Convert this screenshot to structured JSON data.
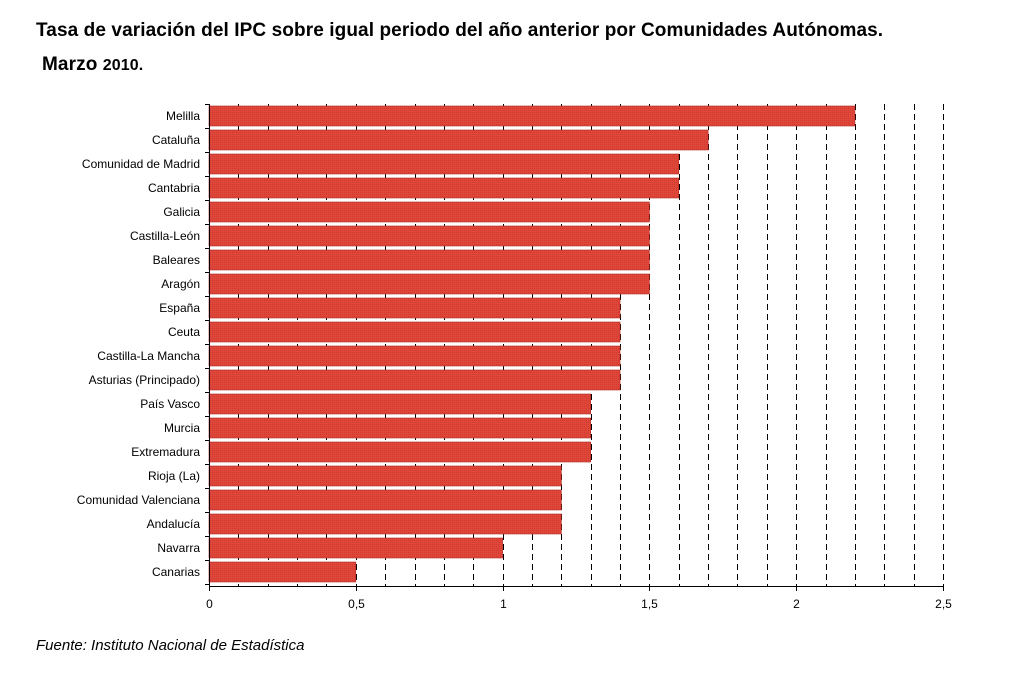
{
  "title": {
    "line1": "Tasa de variación del IPC sobre igual periodo del año anterior por Comunidades Autónomas.",
    "line2_word": "Marzo",
    "line2_year": "2010."
  },
  "source": "Fuente: Instituto Nacional de Estadística",
  "colors": {
    "bar": "#e0473b",
    "bar_edge": "#b52a20",
    "grid": "#000000"
  },
  "chart_data": {
    "type": "bar",
    "orientation": "horizontal",
    "categories": [
      "Melilla",
      "Cataluña",
      "Comunidad de Madrid",
      "Cantabria",
      "Galicia",
      "Castilla-León",
      "Baleares",
      "Aragón",
      "España",
      "Ceuta",
      "Castilla-La Mancha",
      "Asturias (Principado)",
      "País Vasco",
      "Murcia",
      "Extremadura",
      "Rioja (La)",
      "Comunidad Valenciana",
      "Andalucía",
      "Navarra",
      "Canarias"
    ],
    "values": [
      2.2,
      1.7,
      1.6,
      1.6,
      1.5,
      1.5,
      1.5,
      1.5,
      1.4,
      1.4,
      1.4,
      1.4,
      1.3,
      1.3,
      1.3,
      1.2,
      1.2,
      1.2,
      1.0,
      0.5
    ],
    "xlim": [
      0,
      2.5
    ],
    "xticks": [
      0,
      0.5,
      1,
      1.5,
      2,
      2.5
    ],
    "xtick_labels": [
      "0",
      "0,5",
      "1",
      "1,5",
      "2",
      "2,5"
    ],
    "grid_step": 0.1,
    "grid": "vertical dashed",
    "legend": "none"
  }
}
